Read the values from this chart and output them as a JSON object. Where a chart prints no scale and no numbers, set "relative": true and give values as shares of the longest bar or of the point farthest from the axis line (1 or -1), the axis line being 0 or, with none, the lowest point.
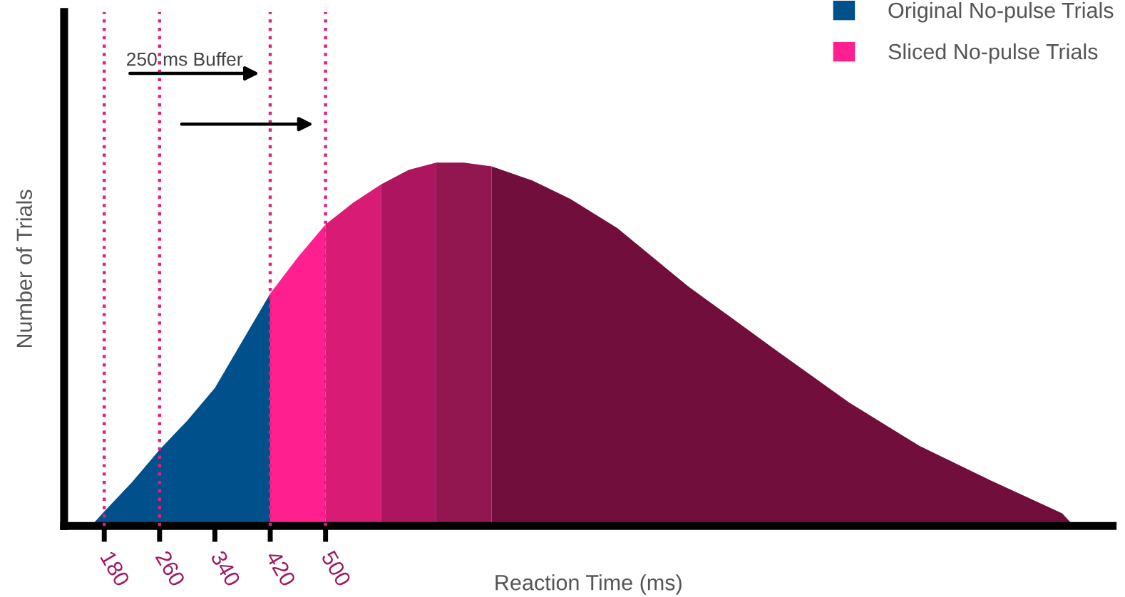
{
  "chart_data": {
    "type": "area",
    "relative": true,
    "xlabel": "Reaction Time (ms)",
    "ylabel": "Number of Trials",
    "annotations": [
      "250 ms Buffer"
    ],
    "xlim": [
      122,
      1638
    ],
    "xticks": [
      180,
      260,
      340,
      420,
      500
    ],
    "legend": "top right",
    "grid": false,
    "ref_lines": [
      {
        "axis": "x",
        "value": 180,
        "color": "#e0207f",
        "line_style": "dotted"
      },
      {
        "axis": "x",
        "value": 260,
        "color": "#e0207f",
        "line_style": "dotted"
      },
      {
        "axis": "x",
        "value": 420,
        "color": "#e0207f",
        "line_style": "dotted"
      },
      {
        "axis": "x",
        "value": 500,
        "color": "#e0207f",
        "line_style": "dotted"
      }
    ],
    "series": [
      {
        "name": "Original No-pulse Trials",
        "color": "#00508c",
        "x": [
          161,
          180,
          220,
          260,
          300,
          340,
          380,
          420
        ],
        "values": [
          0,
          0.04,
          0.12,
          0.21,
          0.29,
          0.38,
          0.51,
          0.64
        ]
      },
      {
        "name": "Sliced No-pulse Trials",
        "color": "#ff1f8e",
        "x": [
          420,
          460,
          500
        ],
        "values": [
          0.64,
          0.74,
          0.83
        ]
      },
      {
        "color": "#d81b75",
        "x": [
          500,
          540,
          580
        ],
        "values": [
          0.83,
          0.89,
          0.94
        ]
      },
      {
        "color": "#ad1560",
        "x": [
          580,
          620,
          660
        ],
        "values": [
          0.94,
          0.98,
          1.0
        ]
      },
      {
        "color": "#921650",
        "x": [
          660,
          700,
          740
        ],
        "values": [
          1.0,
          1.0,
          0.99
        ]
      },
      {
        "color": "#720e3c",
        "x": [
          740,
          800,
          854,
          922,
          1024,
          1154,
          1257,
          1359,
          1462,
          1565,
          1582
        ],
        "values": [
          0.99,
          0.95,
          0.9,
          0.82,
          0.66,
          0.48,
          0.34,
          0.22,
          0.125,
          0.035,
          0
        ]
      }
    ]
  }
}
